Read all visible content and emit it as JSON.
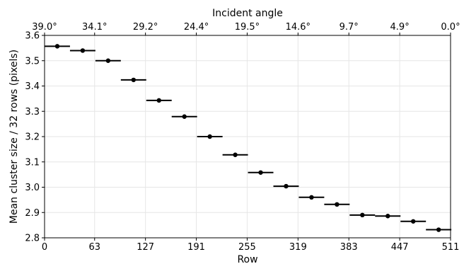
{
  "chart_data": {
    "type": "scatter",
    "title": "",
    "xlabel": "Row",
    "ylabel": "Mean cluster size / 32 rows (pixels)",
    "top_axis_label": "Incident angle",
    "xlim": [
      0,
      511
    ],
    "ylim": [
      2.8,
      3.6
    ],
    "x_ticks": [
      0,
      63,
      127,
      191,
      255,
      319,
      383,
      447,
      511
    ],
    "x_tick_labels": [
      "0",
      "63",
      "127",
      "191",
      "255",
      "319",
      "383",
      "447",
      "511"
    ],
    "y_ticks": [
      2.8,
      2.9,
      3.0,
      3.1,
      3.2,
      3.3,
      3.4,
      3.5,
      3.6
    ],
    "y_tick_labels": [
      "2.8",
      "2.9",
      "3.0",
      "3.1",
      "3.2",
      "3.3",
      "3.4",
      "3.5",
      "3.6"
    ],
    "top_ticks": [
      0,
      63,
      127,
      191,
      255,
      319,
      383,
      447,
      511
    ],
    "top_tick_labels": [
      "39.0°",
      "34.1°",
      "29.2°",
      "24.4°",
      "19.5°",
      "14.6°",
      "9.7°",
      "4.9°",
      "0.0°"
    ],
    "grid": true,
    "series": [
      {
        "x": [
          16,
          48,
          80,
          112,
          144,
          176,
          208,
          240,
          272,
          304,
          336,
          368,
          400,
          432,
          464,
          496
        ],
        "y": [
          3.557,
          3.54,
          3.5,
          3.424,
          3.343,
          3.279,
          3.2,
          3.128,
          3.058,
          3.004,
          2.96,
          2.932,
          2.89,
          2.886,
          2.865,
          2.832
        ],
        "x_err": 16
      }
    ]
  },
  "colors": {
    "points": "#000000",
    "grid": "#e6e6e6",
    "axes": "#000000"
  }
}
